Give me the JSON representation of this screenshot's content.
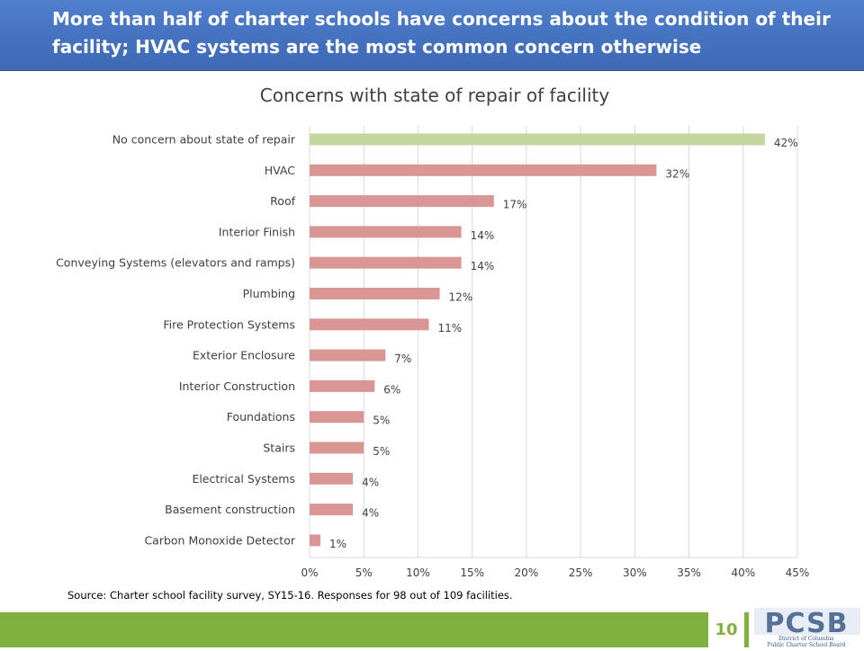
{
  "header": {
    "title": "More than half of charter schools have concerns about the condition of their facility; HVAC systems are the most common concern otherwise"
  },
  "chart_data": {
    "type": "bar",
    "orientation": "horizontal",
    "title": "Concerns with state of repair of facility",
    "categories": [
      "No concern about state of repair",
      "HVAC",
      "Roof",
      "Interior Finish",
      "Conveying Systems (elevators and ramps)",
      "Plumbing",
      "Fire Protection Systems",
      "Exterior Enclosure",
      "Interior Construction",
      "Foundations",
      "Stairs",
      "Electrical Systems",
      "Basement construction",
      "Carbon Monoxide Detector"
    ],
    "values": [
      42,
      32,
      17,
      14,
      14,
      12,
      11,
      7,
      6,
      5,
      5,
      4,
      4,
      1
    ],
    "data_labels": [
      "42%",
      "32%",
      "17%",
      "14%",
      "14%",
      "12%",
      "11%",
      "7%",
      "6%",
      "5%",
      "5%",
      "4%",
      "4%",
      "1%"
    ],
    "xlim": [
      0,
      45
    ],
    "xticks": [
      0,
      5,
      10,
      15,
      20,
      25,
      30,
      35,
      40,
      45
    ],
    "xtick_labels": [
      "0%",
      "5%",
      "10%",
      "15%",
      "20%",
      "25%",
      "30%",
      "35%",
      "40%",
      "45%"
    ],
    "grid": "vertical",
    "colors": {
      "highlight": "#c3d69b",
      "default": "#d99694",
      "grid": "#d9d9d9"
    },
    "highlight_index": 0
  },
  "source": "Source: Charter school facility survey, SY15-16. Responses for 98 out of 109 facilities.",
  "footer": {
    "page_number": "10",
    "logo": {
      "text": "PCSB",
      "line1": "District of Columbia",
      "line2": "Public Charter School Board",
      "color": "#3b5a8a"
    }
  }
}
